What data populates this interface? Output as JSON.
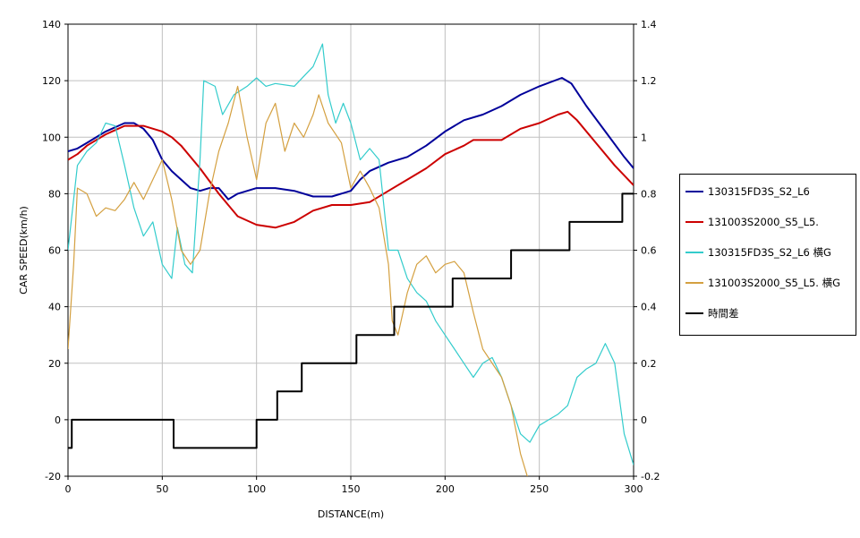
{
  "chart_data": {
    "type": "line",
    "xlabel": "DISTANCE(m)",
    "ylabel": "CAR SPEED(km/h)",
    "xlim": [
      0,
      300
    ],
    "ylim": [
      -20,
      140
    ],
    "y2lim": [
      -0.2,
      1.4
    ],
    "grid": true,
    "legend_position": "right",
    "x_ticks": [
      "0",
      "50",
      "100",
      "150",
      "200",
      "250",
      "300"
    ],
    "y_ticks": [
      "-20",
      "0",
      "20",
      "40",
      "60",
      "80",
      "100",
      "120",
      "140"
    ],
    "y2_ticks": [
      "-0.2",
      "0",
      "0.2",
      "0.4",
      "0.6",
      "0.8",
      "1",
      "1.2",
      "1.4"
    ],
    "series": [
      {
        "name": "130315FD3S_S2_L6",
        "axis": "left",
        "color": "#00009a",
        "points": [
          [
            0,
            95
          ],
          [
            5,
            96
          ],
          [
            10,
            98
          ],
          [
            20,
            102
          ],
          [
            30,
            105
          ],
          [
            35,
            105
          ],
          [
            40,
            103
          ],
          [
            45,
            99
          ],
          [
            50,
            92
          ],
          [
            55,
            88
          ],
          [
            60,
            85
          ],
          [
            65,
            82
          ],
          [
            70,
            81
          ],
          [
            75,
            82
          ],
          [
            80,
            82
          ],
          [
            85,
            78
          ],
          [
            90,
            80
          ],
          [
            100,
            82
          ],
          [
            110,
            82
          ],
          [
            120,
            81
          ],
          [
            130,
            79
          ],
          [
            140,
            79
          ],
          [
            150,
            81
          ],
          [
            155,
            85
          ],
          [
            160,
            88
          ],
          [
            170,
            91
          ],
          [
            180,
            93
          ],
          [
            190,
            97
          ],
          [
            200,
            102
          ],
          [
            210,
            106
          ],
          [
            220,
            108
          ],
          [
            230,
            111
          ],
          [
            240,
            115
          ],
          [
            250,
            118
          ],
          [
            262,
            121
          ],
          [
            267,
            119
          ],
          [
            275,
            111
          ],
          [
            285,
            102
          ],
          [
            295,
            93
          ],
          [
            300,
            89
          ]
        ]
      },
      {
        "name": "131003S2000_S5_L5.",
        "axis": "left",
        "color": "#cc0000",
        "points": [
          [
            0,
            92
          ],
          [
            5,
            94
          ],
          [
            10,
            97
          ],
          [
            20,
            101
          ],
          [
            30,
            104
          ],
          [
            40,
            104
          ],
          [
            50,
            102
          ],
          [
            55,
            100
          ],
          [
            60,
            97
          ],
          [
            70,
            89
          ],
          [
            80,
            80
          ],
          [
            90,
            72
          ],
          [
            100,
            69
          ],
          [
            110,
            68
          ],
          [
            120,
            70
          ],
          [
            130,
            74
          ],
          [
            140,
            76
          ],
          [
            150,
            76
          ],
          [
            160,
            77
          ],
          [
            170,
            81
          ],
          [
            180,
            85
          ],
          [
            190,
            89
          ],
          [
            200,
            94
          ],
          [
            210,
            97
          ],
          [
            215,
            99
          ],
          [
            220,
            99
          ],
          [
            230,
            99
          ],
          [
            240,
            103
          ],
          [
            250,
            105
          ],
          [
            260,
            108
          ],
          [
            265,
            109
          ],
          [
            270,
            106
          ],
          [
            280,
            98
          ],
          [
            290,
            90
          ],
          [
            300,
            83
          ]
        ]
      },
      {
        "name": "130315FD3S_S2_L6 横G",
        "axis": "right",
        "color": "#33cccc",
        "points": [
          [
            0,
            0.6
          ],
          [
            5,
            0.9
          ],
          [
            10,
            0.95
          ],
          [
            15,
            0.98
          ],
          [
            20,
            1.05
          ],
          [
            25,
            1.04
          ],
          [
            30,
            0.9
          ],
          [
            35,
            0.75
          ],
          [
            40,
            0.65
          ],
          [
            45,
            0.7
          ],
          [
            50,
            0.55
          ],
          [
            55,
            0.5
          ],
          [
            58,
            0.68
          ],
          [
            62,
            0.55
          ],
          [
            66,
            0.52
          ],
          [
            70,
            0.92
          ],
          [
            72,
            1.2
          ],
          [
            78,
            1.18
          ],
          [
            82,
            1.08
          ],
          [
            88,
            1.15
          ],
          [
            95,
            1.18
          ],
          [
            100,
            1.21
          ],
          [
            105,
            1.18
          ],
          [
            110,
            1.19
          ],
          [
            120,
            1.18
          ],
          [
            130,
            1.25
          ],
          [
            135,
            1.33
          ],
          [
            138,
            1.15
          ],
          [
            142,
            1.05
          ],
          [
            146,
            1.12
          ],
          [
            150,
            1.05
          ],
          [
            155,
            0.92
          ],
          [
            160,
            0.96
          ],
          [
            165,
            0.92
          ],
          [
            170,
            0.6
          ],
          [
            175,
            0.6
          ],
          [
            180,
            0.5
          ],
          [
            185,
            0.45
          ],
          [
            190,
            0.42
          ],
          [
            195,
            0.35
          ],
          [
            200,
            0.3
          ],
          [
            205,
            0.25
          ],
          [
            210,
            0.2
          ],
          [
            215,
            0.15
          ],
          [
            220,
            0.2
          ],
          [
            225,
            0.22
          ],
          [
            230,
            0.15
          ],
          [
            235,
            0.05
          ],
          [
            240,
            -0.05
          ],
          [
            245,
            -0.08
          ],
          [
            250,
            -0.02
          ],
          [
            255,
            0.0
          ],
          [
            260,
            0.02
          ],
          [
            265,
            0.05
          ],
          [
            270,
            0.15
          ],
          [
            275,
            0.18
          ],
          [
            280,
            0.2
          ],
          [
            285,
            0.27
          ],
          [
            290,
            0.2
          ],
          [
            295,
            -0.05
          ],
          [
            300,
            -0.16
          ]
        ]
      },
      {
        "name": "131003S2000_S5_L5. 横G",
        "axis": "right",
        "color": "#d4a040",
        "points": [
          [
            0,
            0.25
          ],
          [
            3,
            0.55
          ],
          [
            5,
            0.82
          ],
          [
            10,
            0.8
          ],
          [
            15,
            0.72
          ],
          [
            20,
            0.75
          ],
          [
            25,
            0.74
          ],
          [
            30,
            0.78
          ],
          [
            35,
            0.84
          ],
          [
            40,
            0.78
          ],
          [
            45,
            0.85
          ],
          [
            50,
            0.92
          ],
          [
            55,
            0.78
          ],
          [
            60,
            0.6
          ],
          [
            65,
            0.55
          ],
          [
            70,
            0.6
          ],
          [
            75,
            0.8
          ],
          [
            80,
            0.95
          ],
          [
            85,
            1.05
          ],
          [
            90,
            1.18
          ],
          [
            95,
            1.0
          ],
          [
            100,
            0.85
          ],
          [
            105,
            1.05
          ],
          [
            110,
            1.12
          ],
          [
            115,
            0.95
          ],
          [
            120,
            1.05
          ],
          [
            125,
            1.0
          ],
          [
            130,
            1.08
          ],
          [
            133,
            1.15
          ],
          [
            138,
            1.05
          ],
          [
            145,
            0.98
          ],
          [
            150,
            0.82
          ],
          [
            155,
            0.88
          ],
          [
            160,
            0.82
          ],
          [
            165,
            0.75
          ],
          [
            170,
            0.55
          ],
          [
            172,
            0.35
          ],
          [
            175,
            0.3
          ],
          [
            180,
            0.45
          ],
          [
            185,
            0.55
          ],
          [
            190,
            0.58
          ],
          [
            195,
            0.52
          ],
          [
            200,
            0.55
          ],
          [
            205,
            0.56
          ],
          [
            210,
            0.52
          ],
          [
            215,
            0.38
          ],
          [
            220,
            0.25
          ],
          [
            225,
            0.2
          ],
          [
            230,
            0.15
          ],
          [
            235,
            0.05
          ],
          [
            240,
            -0.12
          ],
          [
            245,
            -0.23
          ]
        ]
      },
      {
        "name": "時間差",
        "axis": "right",
        "color": "#000000",
        "step": true,
        "points": [
          [
            0,
            -0.1
          ],
          [
            2,
            0.0
          ],
          [
            54,
            0.0
          ],
          [
            56,
            -0.1
          ],
          [
            98,
            -0.1
          ],
          [
            100,
            0.0
          ],
          [
            110,
            0.0
          ],
          [
            111,
            0.1
          ],
          [
            123,
            0.1
          ],
          [
            124,
            0.2
          ],
          [
            152,
            0.2
          ],
          [
            153,
            0.3
          ],
          [
            172,
            0.3
          ],
          [
            173,
            0.4
          ],
          [
            203,
            0.4
          ],
          [
            204,
            0.5
          ],
          [
            233,
            0.5
          ],
          [
            235,
            0.6
          ],
          [
            265,
            0.6
          ],
          [
            266,
            0.7
          ],
          [
            293,
            0.7
          ],
          [
            294,
            0.8
          ],
          [
            300,
            0.8
          ]
        ]
      }
    ]
  }
}
